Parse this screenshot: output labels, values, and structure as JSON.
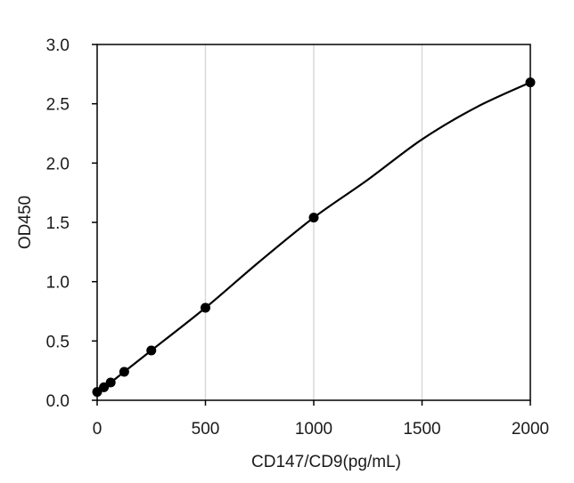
{
  "chart_data": {
    "type": "scatter",
    "title": "",
    "xlabel": "CD147/CD9(pg/mL)",
    "ylabel": "OD450",
    "xlim": [
      0,
      2000
    ],
    "ylim": [
      0,
      3.0
    ],
    "x_ticks": [
      0,
      500,
      1000,
      1500,
      2000
    ],
    "x_tick_labels": [
      "0",
      "500",
      "1000",
      "1500",
      "2000"
    ],
    "y_ticks": [
      0,
      0.5,
      1.0,
      1.5,
      2.0,
      2.5,
      3.0
    ],
    "y_tick_labels": [
      "0.0",
      "0.5",
      "1.0",
      "1.5",
      "2.0",
      "2.5",
      "3.0"
    ],
    "grid": "vertical",
    "legend": "none",
    "series": [
      {
        "x": [
          0,
          31.25,
          62.5,
          125,
          250,
          500,
          1000,
          2000
        ],
        "y": [
          0.07,
          0.11,
          0.15,
          0.24,
          0.42,
          0.78,
          1.54,
          2.68
        ]
      }
    ],
    "fit_curve": {
      "x": [
        0,
        31.25,
        62.5,
        125,
        250,
        500,
        750,
        1000,
        1250,
        1500,
        1750,
        2000
      ],
      "y": [
        0.07,
        0.11,
        0.15,
        0.24,
        0.42,
        0.78,
        1.17,
        1.54,
        1.86,
        2.2,
        2.47,
        2.68
      ]
    },
    "colors": {
      "marker": "#000000",
      "line": "#000000",
      "grid": "#d9d9d9",
      "frame": "#000000"
    }
  }
}
